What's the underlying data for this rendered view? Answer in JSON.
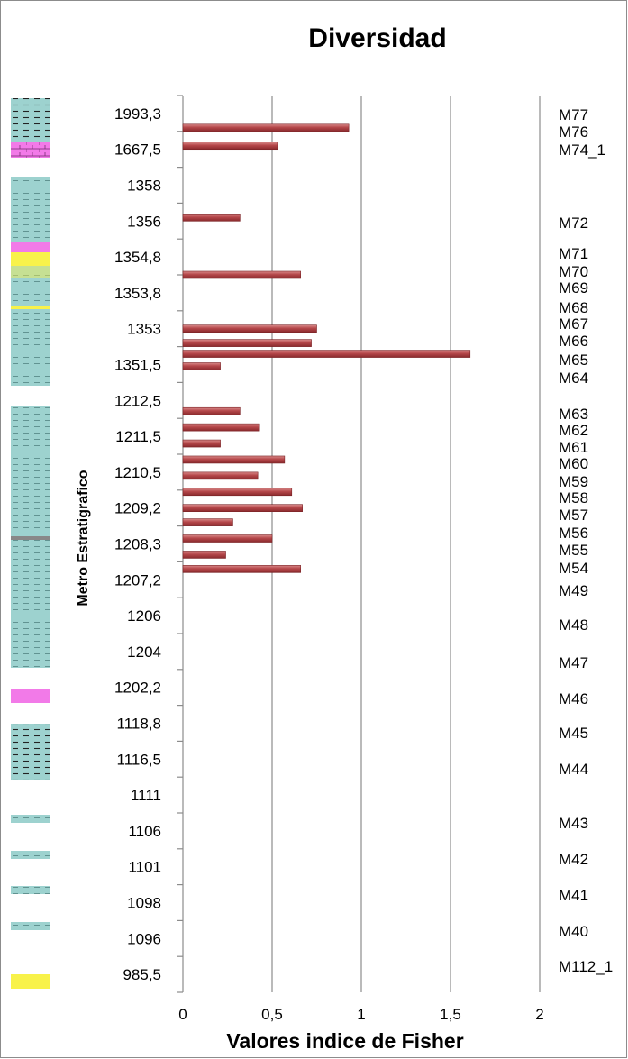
{
  "chart_data": {
    "type": "bar",
    "orientation": "horizontal",
    "title": "Diversidad",
    "xlabel": "Valores indice de  Fisher",
    "ylabel": "Metro Estratigrafico",
    "xlim": [
      0,
      2
    ],
    "x_ticks": [
      "0",
      "0,5",
      "1",
      "1,5",
      "2"
    ],
    "grid": "vertical",
    "bar_color": "#b5474a",
    "y_tick_labels": [
      "1993,3",
      "1667,5",
      "1358",
      "1356",
      "1354,8",
      "1353,8",
      "1353",
      "1351,5",
      "1212,5",
      "1211,5",
      "1210,5",
      "1209,2",
      "1208,3",
      "1207,2",
      "1206",
      "1204",
      "1202,2",
      "1118,8",
      "1116,5",
      "1111",
      "1106",
      "1101",
      "1098",
      "1096",
      "985,5"
    ],
    "samples": [
      "M77",
      "M76",
      "M74_1",
      "M72",
      "M71",
      "M70",
      "M69",
      "M68",
      "M67",
      "M66",
      "M65",
      "M64",
      "M63",
      "M62",
      "M61",
      "M60",
      "M59",
      "M58",
      "M57",
      "M56",
      "M55",
      "M54",
      "M49",
      "M48",
      "M47",
      "M46",
      "M45",
      "M44",
      "M43",
      "M42",
      "M41",
      "M40",
      "M112_1"
    ],
    "values": [
      0.93,
      0.53,
      0.32,
      0.66,
      0.75,
      0.72,
      1.61,
      0.21,
      0.32,
      0.43,
      0.21,
      0.57,
      0.42,
      0.61,
      0.67,
      0.28,
      0.5,
      0.24,
      0.66
    ]
  },
  "lithology_colors": {
    "shale": "#9dd2cf",
    "limestone": "#f27ae8",
    "sandstone": "#f8f24a"
  }
}
